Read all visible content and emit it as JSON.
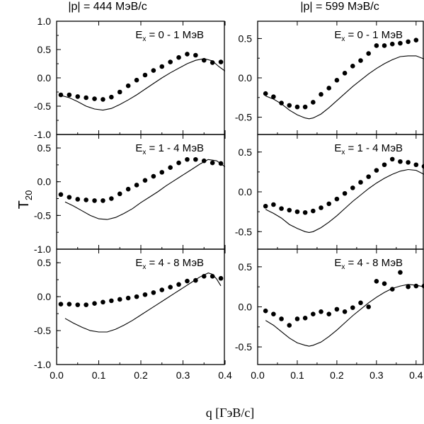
{
  "figure": {
    "col_titles": [
      "|p| = 444 МэВ/с",
      "|p| = 599 МэВ/с"
    ],
    "ylabel_main": "T",
    "ylabel_sub": "20",
    "xlabel": "q [ГэВ/с]"
  },
  "chart_data": [
    {
      "type": "scatter",
      "col": 0,
      "row": 0,
      "label_main": "E",
      "label_sub": "x",
      "label_rest": " = 0 - 1 МэВ",
      "xlim": [
        0,
        0.4
      ],
      "ylim": [
        -1.0,
        1.0
      ],
      "x_ticks": [],
      "y_ticks": [
        "1.0",
        "0.5",
        "0.0",
        "-0.5",
        "-1.0"
      ],
      "y_tick_values": [
        1.0,
        0.5,
        0.0,
        -0.5,
        -1.0
      ],
      "points_x": [
        0.01,
        0.03,
        0.05,
        0.07,
        0.09,
        0.11,
        0.13,
        0.15,
        0.17,
        0.19,
        0.21,
        0.23,
        0.25,
        0.27,
        0.29,
        0.31,
        0.33,
        0.35,
        0.37,
        0.39
      ],
      "points_y": [
        -0.3,
        -0.3,
        -0.33,
        -0.35,
        -0.37,
        -0.38,
        -0.34,
        -0.25,
        -0.14,
        -0.04,
        0.05,
        0.13,
        0.2,
        0.28,
        0.36,
        0.42,
        0.4,
        0.31,
        0.27,
        0.28
      ],
      "curve_x": [
        0.01,
        0.03,
        0.05,
        0.07,
        0.09,
        0.11,
        0.13,
        0.15,
        0.17,
        0.19,
        0.21,
        0.23,
        0.25,
        0.27,
        0.29,
        0.31,
        0.33,
        0.35,
        0.37,
        0.385,
        0.4
      ],
      "curve_y": [
        -0.31,
        -0.35,
        -0.42,
        -0.5,
        -0.55,
        -0.57,
        -0.54,
        -0.47,
        -0.39,
        -0.3,
        -0.2,
        -0.1,
        0.0,
        0.09,
        0.17,
        0.25,
        0.31,
        0.34,
        0.3,
        0.2,
        0.12
      ]
    },
    {
      "type": "scatter",
      "col": 0,
      "row": 1,
      "label_main": "E",
      "label_sub": "x",
      "label_rest": " = 1 - 4 МэВ",
      "xlim": [
        0,
        0.4
      ],
      "ylim": [
        -1.0,
        0.7
      ],
      "x_ticks": [],
      "y_ticks": [
        "0.5",
        "0.0",
        "-0.5",
        "-1.0"
      ],
      "y_tick_values": [
        0.5,
        0.0,
        -0.5,
        -1.0
      ],
      "points_x": [
        0.01,
        0.03,
        0.05,
        0.07,
        0.09,
        0.11,
        0.13,
        0.15,
        0.17,
        0.19,
        0.21,
        0.23,
        0.25,
        0.27,
        0.29,
        0.31,
        0.33,
        0.35,
        0.37,
        0.39
      ],
      "points_y": [
        -0.19,
        -0.23,
        -0.26,
        -0.27,
        -0.28,
        -0.28,
        -0.25,
        -0.18,
        -0.11,
        -0.05,
        0.02,
        0.08,
        0.14,
        0.21,
        0.28,
        0.33,
        0.33,
        0.31,
        0.28,
        0.27
      ],
      "curve_x": [
        0.02,
        0.04,
        0.06,
        0.08,
        0.1,
        0.12,
        0.14,
        0.16,
        0.18,
        0.2,
        0.22,
        0.24,
        0.26,
        0.28,
        0.3,
        0.32,
        0.34,
        0.36,
        0.38,
        0.4
      ],
      "curve_y": [
        -0.3,
        -0.36,
        -0.43,
        -0.5,
        -0.55,
        -0.56,
        -0.53,
        -0.47,
        -0.4,
        -0.31,
        -0.23,
        -0.15,
        -0.06,
        0.02,
        0.1,
        0.18,
        0.26,
        0.33,
        0.31,
        0.22
      ]
    },
    {
      "type": "scatter",
      "col": 0,
      "row": 2,
      "label_main": "E",
      "label_sub": "x",
      "label_rest": " = 4 - 8 МэВ",
      "xlim": [
        0,
        0.4
      ],
      "ylim": [
        -1.0,
        0.7
      ],
      "x_ticks": [
        "0.0",
        "0.1",
        "0.2",
        "0.3",
        "0.4"
      ],
      "x_tick_values": [
        0.0,
        0.1,
        0.2,
        0.3,
        0.4
      ],
      "y_ticks": [
        "0.5",
        "0.0",
        "-0.5",
        "-1.0"
      ],
      "y_tick_values": [
        0.5,
        0.0,
        -0.5,
        -1.0
      ],
      "points_x": [
        0.01,
        0.03,
        0.05,
        0.07,
        0.09,
        0.11,
        0.13,
        0.15,
        0.17,
        0.19,
        0.21,
        0.23,
        0.25,
        0.27,
        0.29,
        0.31,
        0.33,
        0.35,
        0.37,
        0.39
      ],
      "points_y": [
        -0.11,
        -0.11,
        -0.12,
        -0.12,
        -0.1,
        -0.08,
        -0.06,
        -0.04,
        -0.02,
        0.0,
        0.03,
        0.06,
        0.1,
        0.14,
        0.18,
        0.23,
        0.24,
        0.3,
        0.3,
        0.27
      ],
      "curve_x": [
        0.02,
        0.04,
        0.06,
        0.08,
        0.1,
        0.12,
        0.14,
        0.16,
        0.18,
        0.2,
        0.22,
        0.24,
        0.26,
        0.28,
        0.3,
        0.32,
        0.34,
        0.36,
        0.37,
        0.38,
        0.39
      ],
      "curve_y": [
        -0.32,
        -0.39,
        -0.45,
        -0.5,
        -0.52,
        -0.52,
        -0.48,
        -0.42,
        -0.35,
        -0.27,
        -0.19,
        -0.11,
        -0.03,
        0.05,
        0.13,
        0.21,
        0.29,
        0.35,
        0.33,
        0.26,
        0.16
      ]
    },
    {
      "type": "scatter",
      "col": 1,
      "row": 0,
      "label_main": "E",
      "label_sub": "x",
      "label_rest": " = 0 - 1 МэВ",
      "xlim": [
        0,
        0.42
      ],
      "ylim": [
        -0.72,
        0.72
      ],
      "x_ticks": [],
      "y_ticks": [
        "0.5",
        "0.0",
        "-0.5"
      ],
      "y_tick_values": [
        0.5,
        0.0,
        -0.5
      ],
      "points_x": [
        0.02,
        0.04,
        0.06,
        0.08,
        0.1,
        0.12,
        0.14,
        0.16,
        0.18,
        0.2,
        0.22,
        0.24,
        0.26,
        0.28,
        0.3,
        0.32,
        0.34,
        0.36,
        0.38,
        0.4
      ],
      "points_y": [
        -0.2,
        -0.24,
        -0.32,
        -0.35,
        -0.37,
        -0.37,
        -0.31,
        -0.21,
        -0.13,
        -0.03,
        0.06,
        0.15,
        0.22,
        0.31,
        0.41,
        0.41,
        0.43,
        0.44,
        0.46,
        0.48
      ],
      "curve_x": [
        0.02,
        0.04,
        0.06,
        0.08,
        0.1,
        0.12,
        0.13,
        0.14,
        0.16,
        0.18,
        0.2,
        0.22,
        0.24,
        0.26,
        0.28,
        0.3,
        0.32,
        0.34,
        0.36,
        0.38,
        0.4,
        0.42
      ],
      "curve_y": [
        -0.23,
        -0.27,
        -0.33,
        -0.41,
        -0.47,
        -0.51,
        -0.52,
        -0.51,
        -0.46,
        -0.38,
        -0.29,
        -0.2,
        -0.11,
        -0.03,
        0.05,
        0.12,
        0.18,
        0.23,
        0.27,
        0.28,
        0.28,
        0.24
      ]
    },
    {
      "type": "scatter",
      "col": 1,
      "row": 1,
      "label_main": "E",
      "label_sub": "x",
      "label_rest": " = 1 - 4 МэВ",
      "xlim": [
        0,
        0.42
      ],
      "ylim": [
        -0.72,
        0.72
      ],
      "x_ticks": [],
      "y_ticks": [
        "0.5",
        "0.0",
        "-0.5"
      ],
      "y_tick_values": [
        0.5,
        0.0,
        -0.5
      ],
      "points_x": [
        0.02,
        0.04,
        0.06,
        0.08,
        0.1,
        0.12,
        0.14,
        0.16,
        0.18,
        0.2,
        0.22,
        0.24,
        0.26,
        0.28,
        0.3,
        0.32,
        0.34,
        0.36,
        0.38,
        0.4,
        0.42
      ],
      "points_y": [
        -0.18,
        -0.16,
        -0.21,
        -0.23,
        -0.25,
        -0.26,
        -0.24,
        -0.2,
        -0.15,
        -0.09,
        -0.02,
        0.05,
        0.12,
        0.19,
        0.27,
        0.34,
        0.41,
        0.38,
        0.37,
        0.34,
        0.32
      ],
      "curve_x": [
        0.02,
        0.04,
        0.06,
        0.08,
        0.1,
        0.12,
        0.13,
        0.14,
        0.16,
        0.18,
        0.2,
        0.22,
        0.24,
        0.26,
        0.28,
        0.3,
        0.32,
        0.34,
        0.36,
        0.38,
        0.4,
        0.42
      ],
      "curve_y": [
        -0.22,
        -0.27,
        -0.33,
        -0.41,
        -0.46,
        -0.5,
        -0.51,
        -0.5,
        -0.45,
        -0.38,
        -0.3,
        -0.21,
        -0.12,
        -0.04,
        0.04,
        0.11,
        0.17,
        0.22,
        0.26,
        0.28,
        0.27,
        0.22
      ]
    },
    {
      "type": "scatter",
      "col": 1,
      "row": 2,
      "label_main": "E",
      "label_sub": "x",
      "label_rest": " = 4 - 8 МэВ",
      "xlim": [
        0,
        0.42
      ],
      "ylim": [
        -0.72,
        0.72
      ],
      "x_ticks": [
        "0.0",
        "0.1",
        "0.2",
        "0.3",
        "0.4"
      ],
      "x_tick_values": [
        0.0,
        0.1,
        0.2,
        0.3,
        0.4
      ],
      "y_ticks": [
        "0.5",
        "0.0",
        "-0.5"
      ],
      "y_tick_values": [
        0.5,
        0.0,
        -0.5
      ],
      "points_x": [
        0.02,
        0.04,
        0.06,
        0.08,
        0.1,
        0.12,
        0.14,
        0.16,
        0.18,
        0.2,
        0.22,
        0.24,
        0.26,
        0.28,
        0.3,
        0.32,
        0.34,
        0.36,
        0.38,
        0.4,
        0.42
      ],
      "points_y": [
        -0.05,
        -0.09,
        -0.15,
        -0.23,
        -0.15,
        -0.14,
        -0.09,
        -0.06,
        -0.09,
        -0.03,
        -0.06,
        -0.01,
        0.05,
        0.0,
        0.32,
        0.29,
        0.22,
        0.43,
        0.25,
        0.26,
        0.26
      ],
      "curve_x": [
        0.02,
        0.04,
        0.06,
        0.08,
        0.1,
        0.12,
        0.13,
        0.14,
        0.16,
        0.18,
        0.2,
        0.22,
        0.24,
        0.26,
        0.28,
        0.3,
        0.32,
        0.34,
        0.36,
        0.38,
        0.4,
        0.42
      ],
      "curve_y": [
        -0.17,
        -0.23,
        -0.31,
        -0.39,
        -0.45,
        -0.48,
        -0.49,
        -0.48,
        -0.44,
        -0.37,
        -0.29,
        -0.2,
        -0.11,
        -0.03,
        0.05,
        0.12,
        0.18,
        0.23,
        0.26,
        0.28,
        0.27,
        0.25
      ]
    }
  ]
}
